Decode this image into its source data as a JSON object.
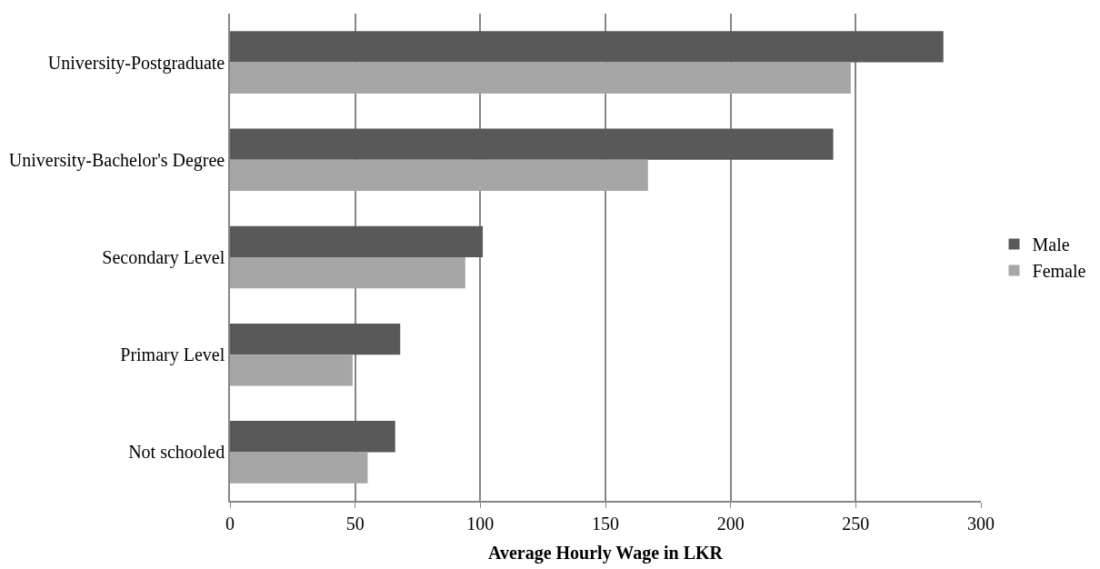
{
  "chart_data": {
    "type": "bar",
    "orientation": "horizontal",
    "xlabel": "Average Hourly Wage in LKR",
    "categories": [
      "University-Postgraduate",
      "University-Bachelor's Degree",
      "Secondary Level",
      "Primary Level",
      "Not schooled"
    ],
    "series": [
      {
        "name": "Male",
        "color": "#595959",
        "values": [
          285,
          241,
          101,
          68,
          66
        ]
      },
      {
        "name": "Female",
        "color": "#a6a6a6",
        "values": [
          248,
          167,
          94,
          49,
          55
        ]
      }
    ],
    "xlim": [
      0,
      300
    ],
    "xticks": [
      0,
      50,
      100,
      150,
      200,
      250,
      300
    ],
    "grid": "x",
    "legend": "right"
  }
}
